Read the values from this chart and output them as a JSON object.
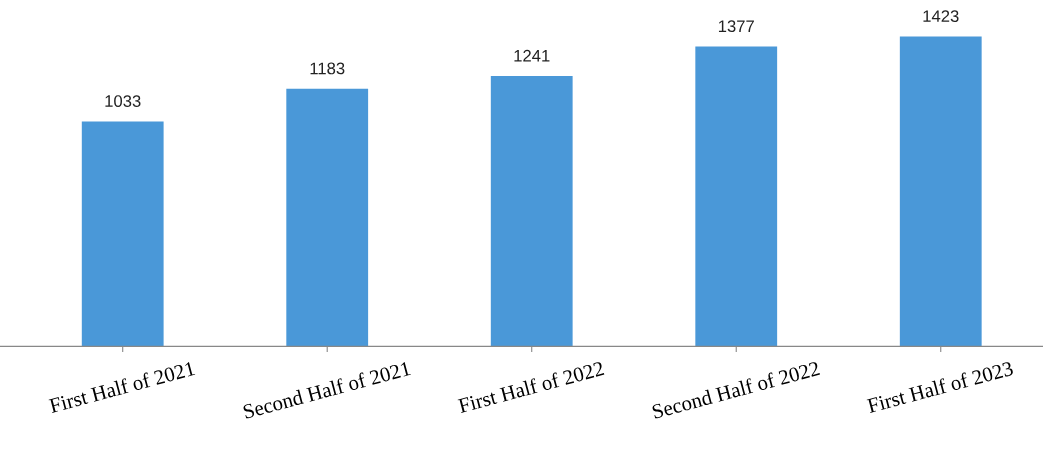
{
  "chart_data": {
    "type": "bar",
    "categories": [
      "First Half of 2021",
      "Second Half of 2021",
      "First Half of 2022",
      "Second Half of 2022",
      "First Half of 2023"
    ],
    "values": [
      1033,
      1183,
      1241,
      1377,
      1423
    ],
    "color": "#4a98d8",
    "data_labels": true,
    "grid": false,
    "legend": false,
    "tick_labels": "x"
  }
}
